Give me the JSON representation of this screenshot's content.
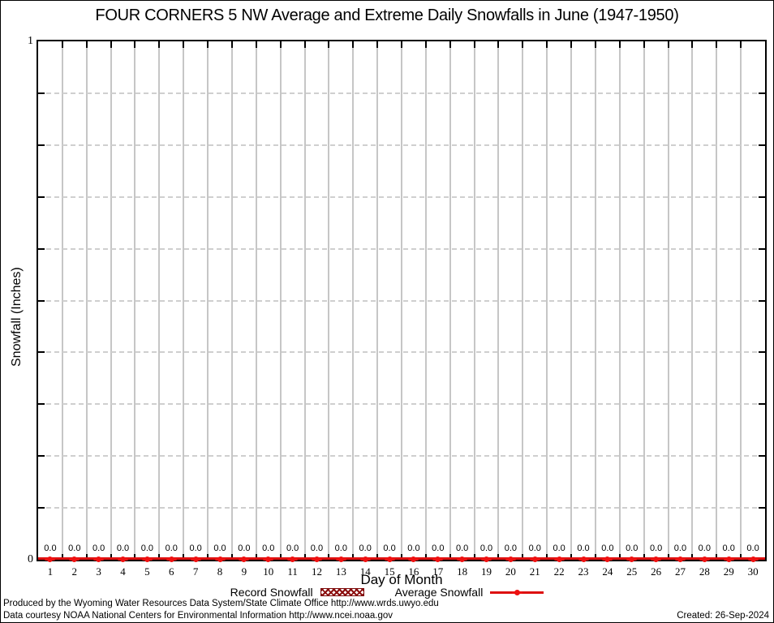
{
  "title": "FOUR CORNERS 5 NW Average and Extreme Daily Snowfalls in June (1947-1950)",
  "colors": {
    "average_line": "#dd0f0f",
    "marker": "#ee1111",
    "record_hatch": "#8b0e0e",
    "grid_solid": "#c6c6c6",
    "grid_dashed": "#cfcfcf",
    "axis": "#000000"
  },
  "chart_data": {
    "type": "line",
    "title": "FOUR CORNERS 5 NW Average and Extreme Daily Snowfalls in June (1947-1950)",
    "xlabel": "Day of Month",
    "ylabel": "Snowfall (Inches)",
    "x": [
      1,
      2,
      3,
      4,
      5,
      6,
      7,
      8,
      9,
      10,
      11,
      12,
      13,
      14,
      15,
      16,
      17,
      18,
      19,
      20,
      21,
      22,
      23,
      24,
      25,
      26,
      27,
      28,
      29,
      30
    ],
    "xlim": [
      0.5,
      30.5
    ],
    "ylim": [
      0,
      1
    ],
    "ytick_step": 0.1,
    "ytick_labels": [
      {
        "value": 1,
        "label": "1"
      },
      {
        "value": 0,
        "label": "0"
      }
    ],
    "grid": {
      "vertical": "solid-per-day",
      "horizontal": "dashed-per-0.1"
    },
    "point_label_format": "0.0",
    "legend_position": "bottom-center",
    "series": [
      {
        "name": "Record Snowfall",
        "style": "hatched-box",
        "values": [
          0,
          0,
          0,
          0,
          0,
          0,
          0,
          0,
          0,
          0,
          0,
          0,
          0,
          0,
          0,
          0,
          0,
          0,
          0,
          0,
          0,
          0,
          0,
          0,
          0,
          0,
          0,
          0,
          0,
          0
        ]
      },
      {
        "name": "Average Snowfall",
        "style": "line-with-points",
        "values": [
          0,
          0,
          0,
          0,
          0,
          0,
          0,
          0,
          0,
          0,
          0,
          0,
          0,
          0,
          0,
          0,
          0,
          0,
          0,
          0,
          0,
          0,
          0,
          0,
          0,
          0,
          0,
          0,
          0,
          0
        ]
      }
    ]
  },
  "legend": {
    "items": [
      {
        "label": "Record Snowfall"
      },
      {
        "label": "Average Snowfall"
      }
    ]
  },
  "footer": {
    "produced_by": "Produced by the Wyoming Water Resources Data System/State Climate Office http://www.wrds.uwyo.edu",
    "data_courtesy": "Data courtesy NOAA National Centers for Environmental Information http://www.ncei.noaa.gov",
    "created": "Created: 26-Sep-2024"
  }
}
